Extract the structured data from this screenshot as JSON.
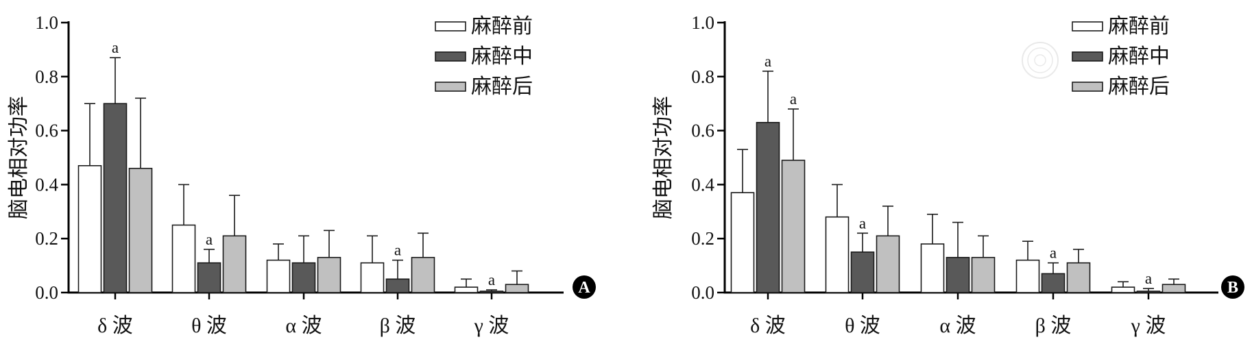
{
  "chart_data": [
    {
      "panel": "A",
      "type": "bar",
      "ylabel": "脑电相对功率",
      "xlabel": "",
      "ylim": [
        0,
        1.0
      ],
      "yticks": [
        "0.0",
        "0.2",
        "0.4",
        "0.6",
        "0.8",
        "1.0"
      ],
      "categories": [
        "δ 波",
        "θ 波",
        "α 波",
        "β 波",
        "γ 波"
      ],
      "legend_position": "top-right",
      "series": [
        {
          "name": "麻醉前",
          "color": "#ffffff",
          "values": [
            0.47,
            0.25,
            0.12,
            0.11,
            0.02
          ],
          "errors": [
            0.23,
            0.15,
            0.06,
            0.1,
            0.03
          ],
          "sig": [
            "",
            "",
            "",
            "",
            ""
          ]
        },
        {
          "name": "麻醉中",
          "color": "#595959",
          "values": [
            0.7,
            0.11,
            0.11,
            0.05,
            0.005
          ],
          "errors": [
            0.17,
            0.05,
            0.1,
            0.07,
            0.005
          ],
          "sig": [
            "a",
            "a",
            "",
            "a",
            "a"
          ]
        },
        {
          "name": "麻醉后",
          "color": "#c0c0c0",
          "values": [
            0.46,
            0.21,
            0.13,
            0.13,
            0.03
          ],
          "errors": [
            0.26,
            0.15,
            0.1,
            0.09,
            0.05
          ],
          "sig": [
            "",
            "",
            "",
            "",
            ""
          ]
        }
      ]
    },
    {
      "panel": "B",
      "type": "bar",
      "ylabel": "脑电相对功率",
      "xlabel": "",
      "ylim": [
        0,
        1.0
      ],
      "yticks": [
        "0.0",
        "0.2",
        "0.4",
        "0.6",
        "0.8",
        "1.0"
      ],
      "categories": [
        "δ 波",
        "θ 波",
        "α 波",
        "β 波",
        "γ 波"
      ],
      "legend_position": "top-right",
      "series": [
        {
          "name": "麻醉前",
          "color": "#ffffff",
          "values": [
            0.37,
            0.28,
            0.18,
            0.12,
            0.02
          ],
          "errors": [
            0.16,
            0.12,
            0.11,
            0.07,
            0.02
          ],
          "sig": [
            "",
            "",
            "",
            "",
            ""
          ]
        },
        {
          "name": "麻醉中",
          "color": "#595959",
          "values": [
            0.63,
            0.15,
            0.13,
            0.07,
            0.005
          ],
          "errors": [
            0.19,
            0.07,
            0.13,
            0.04,
            0.01
          ],
          "sig": [
            "a",
            "a",
            "",
            "a",
            "a"
          ]
        },
        {
          "name": "麻醉后",
          "color": "#c0c0c0",
          "values": [
            0.49,
            0.21,
            0.13,
            0.11,
            0.03
          ],
          "errors": [
            0.19,
            0.11,
            0.08,
            0.05,
            0.02
          ],
          "sig": [
            "a",
            "",
            "",
            "",
            ""
          ]
        }
      ]
    }
  ]
}
